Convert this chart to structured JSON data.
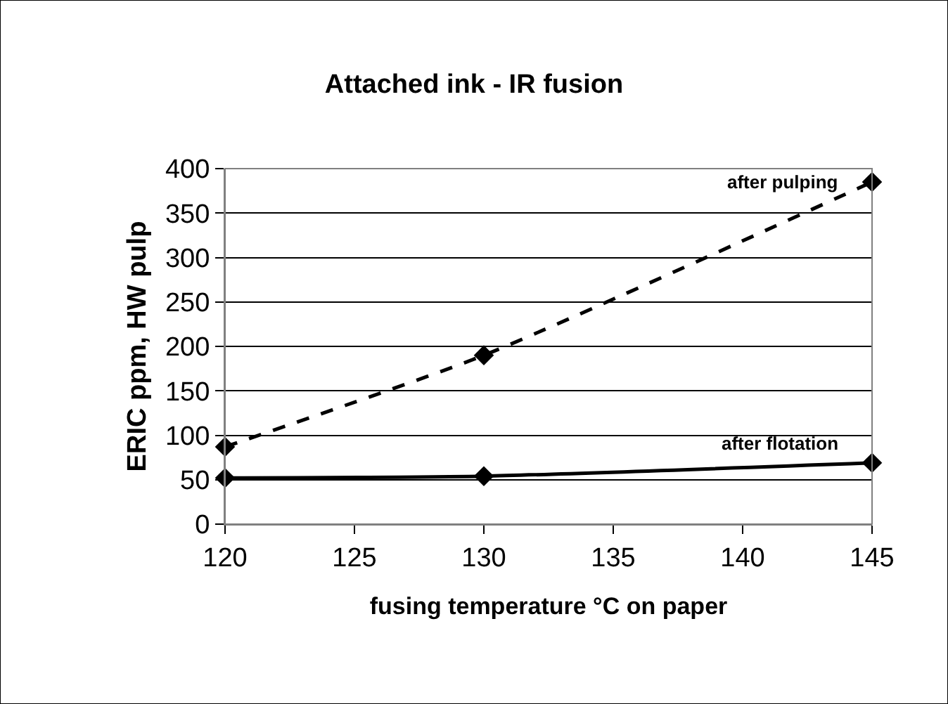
{
  "chart_data": {
    "type": "line",
    "title": "Attached ink - IR fusion",
    "xlabel": "fusing temperature °C on paper",
    "ylabel": "ERIC ppm, HW pulp",
    "x": [
      120,
      130,
      145
    ],
    "series": [
      {
        "name": "after pulping",
        "color": "#000000",
        "values": [
          87,
          190,
          385
        ],
        "line_style": "dashed"
      },
      {
        "name": "after flotation",
        "color": "#000000",
        "values": [
          52,
          54,
          69
        ],
        "line_style": "solid"
      }
    ],
    "xlim": [
      120,
      145
    ],
    "xticks": [
      120,
      125,
      130,
      135,
      140,
      145
    ],
    "ylim": [
      0,
      400
    ],
    "yticks": [
      0,
      50,
      100,
      150,
      200,
      250,
      300,
      350,
      400
    ],
    "grid": "y",
    "legend": false,
    "marker": "diamond"
  }
}
